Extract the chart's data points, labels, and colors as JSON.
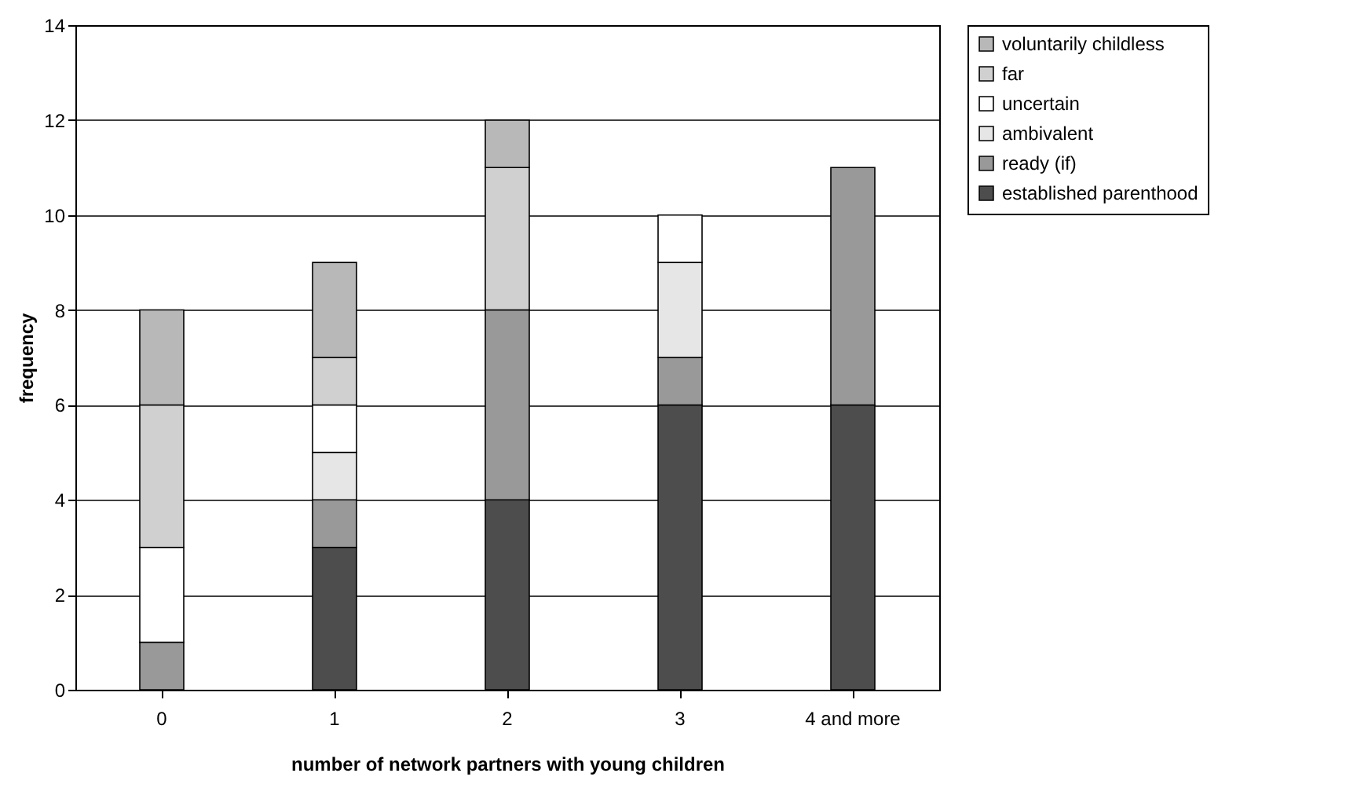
{
  "chart_data": {
    "type": "bar",
    "stacked": true,
    "xlabel": "number of network partners with young children",
    "ylabel": "frequency",
    "categories": [
      "0",
      "1",
      "2",
      "3",
      "4 and more"
    ],
    "series": [
      {
        "name": "established parenthood",
        "color": "#4d4d4d",
        "values": [
          0,
          3,
          4,
          6,
          6
        ]
      },
      {
        "name": "ready (if)",
        "color": "#999999",
        "values": [
          1,
          1,
          4,
          1,
          5
        ]
      },
      {
        "name": "ambivalent",
        "color": "#e6e6e6",
        "values": [
          0,
          1,
          0,
          2,
          0
        ]
      },
      {
        "name": "uncertain",
        "color": "#ffffff",
        "values": [
          2,
          1,
          0,
          1,
          0
        ]
      },
      {
        "name": "far",
        "color": "#d0d0d0",
        "values": [
          3,
          1,
          3,
          0,
          0
        ]
      },
      {
        "name": "voluntarily childless",
        "color": "#b8b8b8",
        "values": [
          2,
          2,
          1,
          0,
          0
        ]
      }
    ],
    "ylim": [
      0,
      14
    ],
    "yticks": [
      0,
      2,
      4,
      6,
      8,
      10,
      12,
      14
    ],
    "grid": "y",
    "legend": "right"
  }
}
